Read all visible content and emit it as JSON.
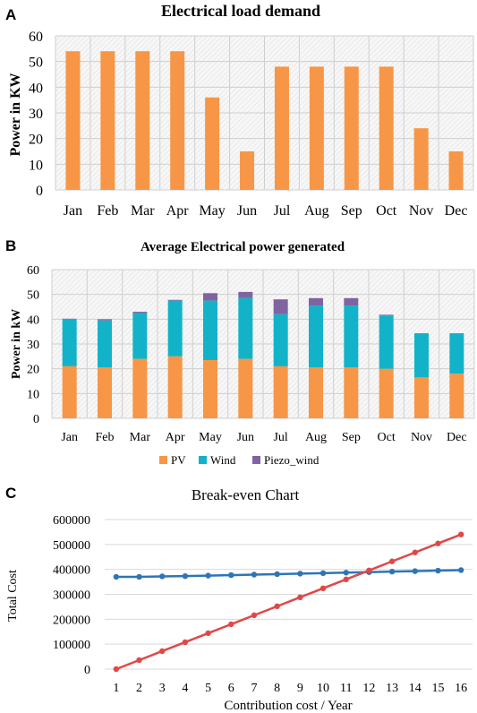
{
  "panels": {
    "a": "A",
    "b": "B",
    "c": "C"
  },
  "chart_data": [
    {
      "type": "bar",
      "title": "Electrical load demand",
      "xlabel": "",
      "ylabel": "Power in KW",
      "categories": [
        "Jan",
        "Feb",
        "Mar",
        "Apr",
        "May",
        "Jun",
        "Jul",
        "Aug",
        "Sep",
        "Oct",
        "Nov",
        "Dec"
      ],
      "values": [
        54,
        54,
        54,
        54,
        36,
        15,
        48,
        48,
        48,
        48,
        24,
        15
      ],
      "ylim": [
        0,
        60
      ],
      "yticks": [
        0,
        10,
        20,
        30,
        40,
        50,
        60
      ],
      "color": "#F79646",
      "grid": true
    },
    {
      "type": "bar",
      "stacked": true,
      "title": "Average Electrical power generated",
      "xlabel": "",
      "ylabel": "Power in kW",
      "categories": [
        "Jan",
        "Feb",
        "Mar",
        "Apr",
        "May",
        "Jun",
        "Jul",
        "Aug",
        "Sep",
        "Oct",
        "Nov",
        "Dec"
      ],
      "series": [
        {
          "name": "PV",
          "color": "#F79646",
          "values": [
            21,
            20.5,
            24,
            25,
            23.5,
            24,
            21,
            20.5,
            20.5,
            20,
            16.5,
            18
          ]
        },
        {
          "name": "Wind",
          "color": "#12B3C9",
          "values": [
            19,
            19,
            18.5,
            22.5,
            24,
            24.5,
            21,
            25,
            25,
            21.5,
            17.5,
            16
          ]
        },
        {
          "name": "Piezo_wind",
          "color": "#8064A2",
          "values": [
            0.2,
            0.5,
            0.5,
            0.3,
            3,
            2.5,
            6,
            3,
            3,
            0.3,
            0.3,
            0.3
          ]
        }
      ],
      "ylim": [
        0,
        60
      ],
      "yticks": [
        0,
        10,
        20,
        30,
        40,
        50,
        60
      ],
      "legend": "bottom",
      "grid": true
    },
    {
      "type": "line",
      "title": "Break-even Chart",
      "xlabel": "Contribution cost / Year",
      "ylabel": "Total Cost",
      "x": [
        1,
        2,
        3,
        4,
        5,
        6,
        7,
        8,
        9,
        10,
        11,
        12,
        13,
        14,
        15,
        16
      ],
      "series": [
        {
          "color": "#2E75B6",
          "values": [
            370000,
            370000,
            372000,
            373000,
            375000,
            377000,
            379000,
            381000,
            383000,
            385000,
            387000,
            389000,
            391000,
            393000,
            395000,
            397000
          ]
        },
        {
          "color": "#E04848",
          "values": [
            0,
            36000,
            72000,
            108000,
            144000,
            180000,
            216000,
            252000,
            288000,
            324000,
            360000,
            396000,
            432000,
            468000,
            504000,
            540000
          ]
        }
      ],
      "ylim": [
        0,
        600000
      ],
      "yticks": [
        0,
        100000,
        200000,
        300000,
        400000,
        500000,
        600000
      ],
      "grid": true
    }
  ]
}
